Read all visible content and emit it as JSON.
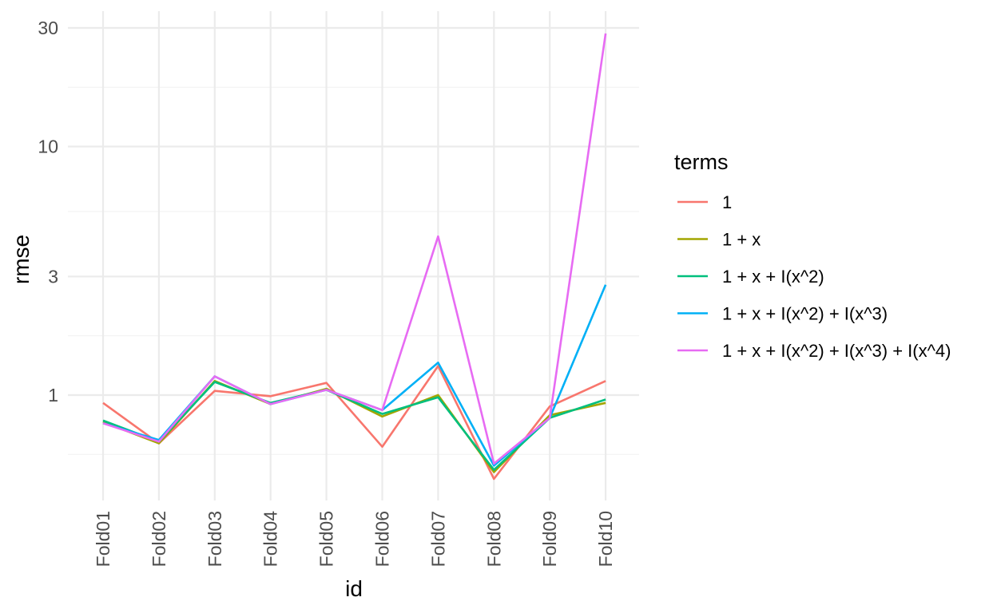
{
  "chart_data": {
    "type": "line",
    "xlabel": "id",
    "ylabel": "rmse",
    "y_scale": "log",
    "ylim": [
      0.42,
      33
    ],
    "y_ticks": [
      1,
      3,
      10,
      30
    ],
    "y_tick_labels": [
      "1",
      "3",
      "10",
      "30"
    ],
    "categories": [
      "Fold01",
      "Fold02",
      "Fold03",
      "Fold04",
      "Fold05",
      "Fold06",
      "Fold07",
      "Fold08",
      "Fold09",
      "Fold10"
    ],
    "grid": true,
    "legend": {
      "title": "terms",
      "placement": "right"
    },
    "series": [
      {
        "name": "1",
        "color": "#F8766D",
        "values": [
          0.93,
          0.64,
          1.04,
          0.99,
          1.12,
          0.62,
          1.31,
          0.46,
          0.9,
          1.14
        ]
      },
      {
        "name": "1 + x",
        "color": "#A3A500",
        "values": [
          0.78,
          0.64,
          1.14,
          0.92,
          1.06,
          0.82,
          1.0,
          0.49,
          0.83,
          0.93
        ]
      },
      {
        "name": "1 + x + I(x^2)",
        "color": "#00BF7D",
        "values": [
          0.79,
          0.65,
          1.13,
          0.93,
          1.05,
          0.84,
          0.98,
          0.5,
          0.81,
          0.96
        ]
      },
      {
        "name": "1 + x + I(x^2) + I(x^3)",
        "color": "#00B0F6",
        "values": [
          0.77,
          0.66,
          1.19,
          0.92,
          1.05,
          0.87,
          1.35,
          0.52,
          0.81,
          2.78
        ]
      },
      {
        "name": "1 + x + I(x^2) + I(x^3) + I(x^4)",
        "color": "#E76BF3",
        "values": [
          0.77,
          0.65,
          1.19,
          0.92,
          1.05,
          0.87,
          4.35,
          0.53,
          0.81,
          28.5
        ]
      }
    ]
  }
}
